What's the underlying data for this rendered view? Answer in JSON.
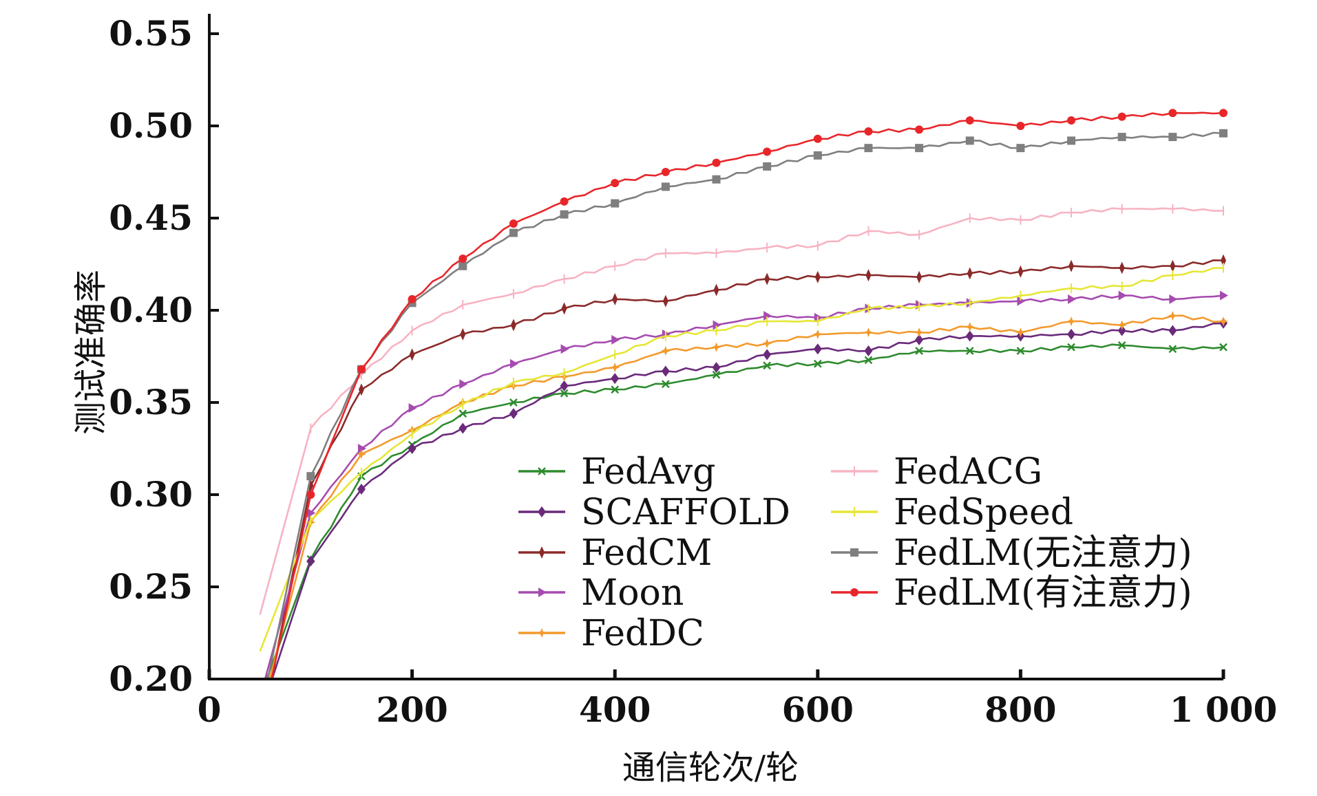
{
  "chart_data": {
    "type": "line",
    "title": "",
    "xlabel": "通信轮次/轮",
    "ylabel": "测试准确率",
    "xlim": [
      0,
      1000
    ],
    "ylim": [
      0.2,
      0.55
    ],
    "xticks": [
      0,
      200,
      400,
      600,
      800,
      1000
    ],
    "xtick_labels": [
      "0",
      "200",
      "400",
      "600",
      "800",
      "1 000"
    ],
    "yticks": [
      0.2,
      0.25,
      0.3,
      0.35,
      0.4,
      0.45,
      0.5,
      0.55
    ],
    "ytick_labels": [
      "0.20",
      "0.25",
      "0.30",
      "0.35",
      "0.40",
      "0.45",
      "0.50",
      "0.55"
    ],
    "grid": false,
    "legend_position": "bottom-center",
    "x": [
      50,
      100,
      150,
      200,
      250,
      300,
      350,
      400,
      450,
      500,
      550,
      600,
      650,
      700,
      750,
      800,
      850,
      900,
      950,
      1000
    ],
    "series": [
      {
        "name": "FedAvg",
        "color": "#2e8b2e",
        "marker": "x",
        "values": [
          0.19,
          0.265,
          0.31,
          0.327,
          0.344,
          0.35,
          0.355,
          0.357,
          0.36,
          0.365,
          0.37,
          0.371,
          0.373,
          0.378,
          0.378,
          0.378,
          0.38,
          0.381,
          0.379,
          0.38
        ]
      },
      {
        "name": "SCAFFOLD",
        "color": "#6a2a7a",
        "marker": "diamond",
        "values": [
          0.18,
          0.264,
          0.303,
          0.325,
          0.336,
          0.344,
          0.359,
          0.363,
          0.367,
          0.369,
          0.376,
          0.379,
          0.378,
          0.384,
          0.386,
          0.386,
          0.387,
          0.389,
          0.389,
          0.393
        ]
      },
      {
        "name": "FedCM",
        "color": "#8b2a2a",
        "marker": "thin-diamond",
        "values": [
          0.17,
          0.305,
          0.357,
          0.376,
          0.387,
          0.392,
          0.401,
          0.406,
          0.405,
          0.411,
          0.417,
          0.418,
          0.419,
          0.418,
          0.42,
          0.421,
          0.424,
          0.423,
          0.424,
          0.427
        ]
      },
      {
        "name": "Moon",
        "color": "#a64bb0",
        "marker": "triangle-right",
        "values": [
          0.19,
          0.29,
          0.325,
          0.347,
          0.36,
          0.371,
          0.379,
          0.384,
          0.387,
          0.392,
          0.397,
          0.396,
          0.401,
          0.403,
          0.404,
          0.405,
          0.406,
          0.408,
          0.406,
          0.408
        ]
      },
      {
        "name": "FedDC",
        "color": "#f39a2c",
        "marker": "star",
        "values": [
          0.18,
          0.285,
          0.322,
          0.335,
          0.35,
          0.359,
          0.364,
          0.369,
          0.378,
          0.38,
          0.382,
          0.387,
          0.388,
          0.388,
          0.391,
          0.388,
          0.394,
          0.392,
          0.397,
          0.394
        ]
      },
      {
        "name": "FedACG",
        "color": "#f7b3c2",
        "marker": "plus",
        "values": [
          0.235,
          0.336,
          0.365,
          0.389,
          0.403,
          0.409,
          0.417,
          0.424,
          0.431,
          0.431,
          0.434,
          0.435,
          0.443,
          0.441,
          0.45,
          0.449,
          0.453,
          0.455,
          0.455,
          0.454
        ]
      },
      {
        "name": "FedSpeed",
        "color": "#e6e635",
        "marker": "plus",
        "values": [
          0.215,
          0.286,
          0.312,
          0.333,
          0.349,
          0.361,
          0.366,
          0.376,
          0.386,
          0.389,
          0.394,
          0.394,
          0.401,
          0.402,
          0.404,
          0.408,
          0.412,
          0.413,
          0.419,
          0.423
        ]
      },
      {
        "name": "FedLM(无注意力)",
        "color": "#7f7f7f",
        "marker": "square",
        "values": [
          0.18,
          0.31,
          0.368,
          0.404,
          0.424,
          0.442,
          0.452,
          0.458,
          0.467,
          0.471,
          0.478,
          0.484,
          0.488,
          0.488,
          0.492,
          0.488,
          0.492,
          0.494,
          0.494,
          0.496
        ]
      },
      {
        "name": "FedLM(有注意力)",
        "color": "#e8262a",
        "marker": "circle",
        "values": [
          0.17,
          0.3,
          0.368,
          0.406,
          0.428,
          0.447,
          0.459,
          0.469,
          0.475,
          0.48,
          0.486,
          0.493,
          0.497,
          0.498,
          0.503,
          0.5,
          0.503,
          0.505,
          0.507,
          0.507
        ]
      }
    ]
  }
}
